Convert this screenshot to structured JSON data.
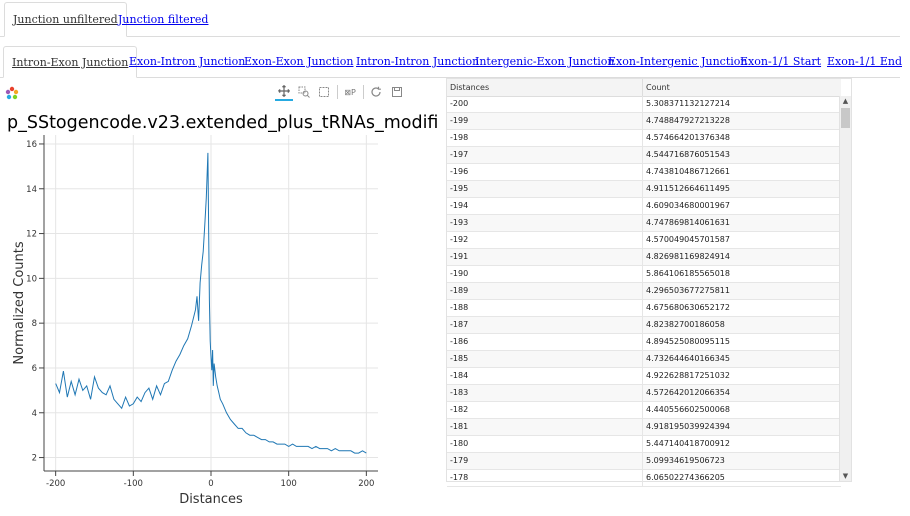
{
  "top_tabs": [
    "Junction unfiltered",
    "Junction filtered"
  ],
  "sub_tabs": [
    "Intron-Exon Junction",
    "Exon-Intron Junction",
    "Exon-Exon Junction",
    "Intron-Intron Junction",
    "Intergenic-Exon Junction",
    "Exon-Intergenic Junction",
    "Exon-1/1 Start",
    "Exon-1/1 End"
  ],
  "toolbar": {
    "icons": [
      "pan-icon",
      "box-zoom-icon",
      "box-select-icon",
      "hover-icon",
      "reset-icon",
      "save-icon"
    ],
    "hover_label": "⊠P"
  },
  "plot_title": "p_SStogencode.v23.extended_plus_tRNAs_modifi",
  "chart_data": {
    "type": "line",
    "title": "p_SStogencode.v23.extended_plus_tRNAs_modifi",
    "xlabel": "Distances",
    "ylabel": "Normalized Counts",
    "xlim": [
      -215,
      215
    ],
    "ylim": [
      1.4,
      16.4
    ],
    "xticks": [
      -200,
      -100,
      0,
      100,
      200
    ],
    "yticks": [
      2,
      4,
      6,
      8,
      10,
      12,
      14,
      16
    ],
    "color": "#1f77b4",
    "series": [
      {
        "name": "Normalized Counts",
        "x": [
          -200,
          -195,
          -190,
          -185,
          -180,
          -175,
          -170,
          -165,
          -160,
          -155,
          -150,
          -145,
          -140,
          -135,
          -130,
          -125,
          -120,
          -115,
          -110,
          -105,
          -100,
          -95,
          -90,
          -85,
          -80,
          -75,
          -70,
          -65,
          -60,
          -55,
          -50,
          -45,
          -40,
          -35,
          -30,
          -25,
          -20,
          -18,
          -16,
          -14,
          -12,
          -10,
          -8,
          -6,
          -4,
          -3,
          -2,
          -1,
          0,
          1,
          2,
          3,
          4,
          6,
          8,
          10,
          12,
          15,
          20,
          25,
          30,
          35,
          40,
          45,
          50,
          55,
          60,
          65,
          70,
          75,
          80,
          85,
          90,
          95,
          100,
          105,
          110,
          115,
          120,
          125,
          130,
          135,
          140,
          145,
          150,
          155,
          160,
          165,
          170,
          175,
          180,
          185,
          190,
          195,
          200
        ],
        "y": [
          5.3,
          4.9,
          5.86,
          4.7,
          5.4,
          4.8,
          5.5,
          5.0,
          5.2,
          4.6,
          5.6,
          5.1,
          4.9,
          4.8,
          5.2,
          4.6,
          4.4,
          4.2,
          4.7,
          4.3,
          4.4,
          4.7,
          4.5,
          4.9,
          5.1,
          4.6,
          5.2,
          4.8,
          5.3,
          5.4,
          5.9,
          6.3,
          6.6,
          7.0,
          7.3,
          7.9,
          8.6,
          9.2,
          8.1,
          9.8,
          10.6,
          11.2,
          12.4,
          13.6,
          15.6,
          12.0,
          9.0,
          7.2,
          6.5,
          5.9,
          6.8,
          5.2,
          6.2,
          5.6,
          5.2,
          4.9,
          4.6,
          4.4,
          4.0,
          3.7,
          3.5,
          3.3,
          3.3,
          3.1,
          3.0,
          3.0,
          2.9,
          2.8,
          2.8,
          2.7,
          2.7,
          2.6,
          2.6,
          2.6,
          2.5,
          2.6,
          2.5,
          2.5,
          2.5,
          2.5,
          2.4,
          2.5,
          2.4,
          2.4,
          2.4,
          2.3,
          2.4,
          2.3,
          2.3,
          2.3,
          2.3,
          2.2,
          2.2,
          2.3,
          2.2
        ]
      }
    ]
  },
  "table": {
    "headers": [
      "Distances",
      "Count"
    ],
    "rows": [
      [
        "-200",
        "5.308371132127214"
      ],
      [
        "-199",
        "4.748847927213228"
      ],
      [
        "-198",
        "4.574664201376348"
      ],
      [
        "-197",
        "4.544716876051543"
      ],
      [
        "-196",
        "4.743810486712661"
      ],
      [
        "-195",
        "4.911512664611495"
      ],
      [
        "-194",
        "4.609034680001967"
      ],
      [
        "-193",
        "4.747869814061631"
      ],
      [
        "-192",
        "4.570049045701587"
      ],
      [
        "-191",
        "4.826981169824914"
      ],
      [
        "-190",
        "5.864106185565018"
      ],
      [
        "-189",
        "4.296503677275811"
      ],
      [
        "-188",
        "4.675680630652172"
      ],
      [
        "-187",
        "4.82382700186058"
      ],
      [
        "-186",
        "4.894525080095115"
      ],
      [
        "-185",
        "4.732644640166345"
      ],
      [
        "-184",
        "4.922628817251032"
      ],
      [
        "-183",
        "4.572642012066354"
      ],
      [
        "-182",
        "4.440556602500068"
      ],
      [
        "-181",
        "4.918195039924394"
      ],
      [
        "-180",
        "5.447140418700912"
      ],
      [
        "-179",
        "5.09934619506723"
      ],
      [
        "-178",
        "6.06502274366205"
      ]
    ]
  }
}
